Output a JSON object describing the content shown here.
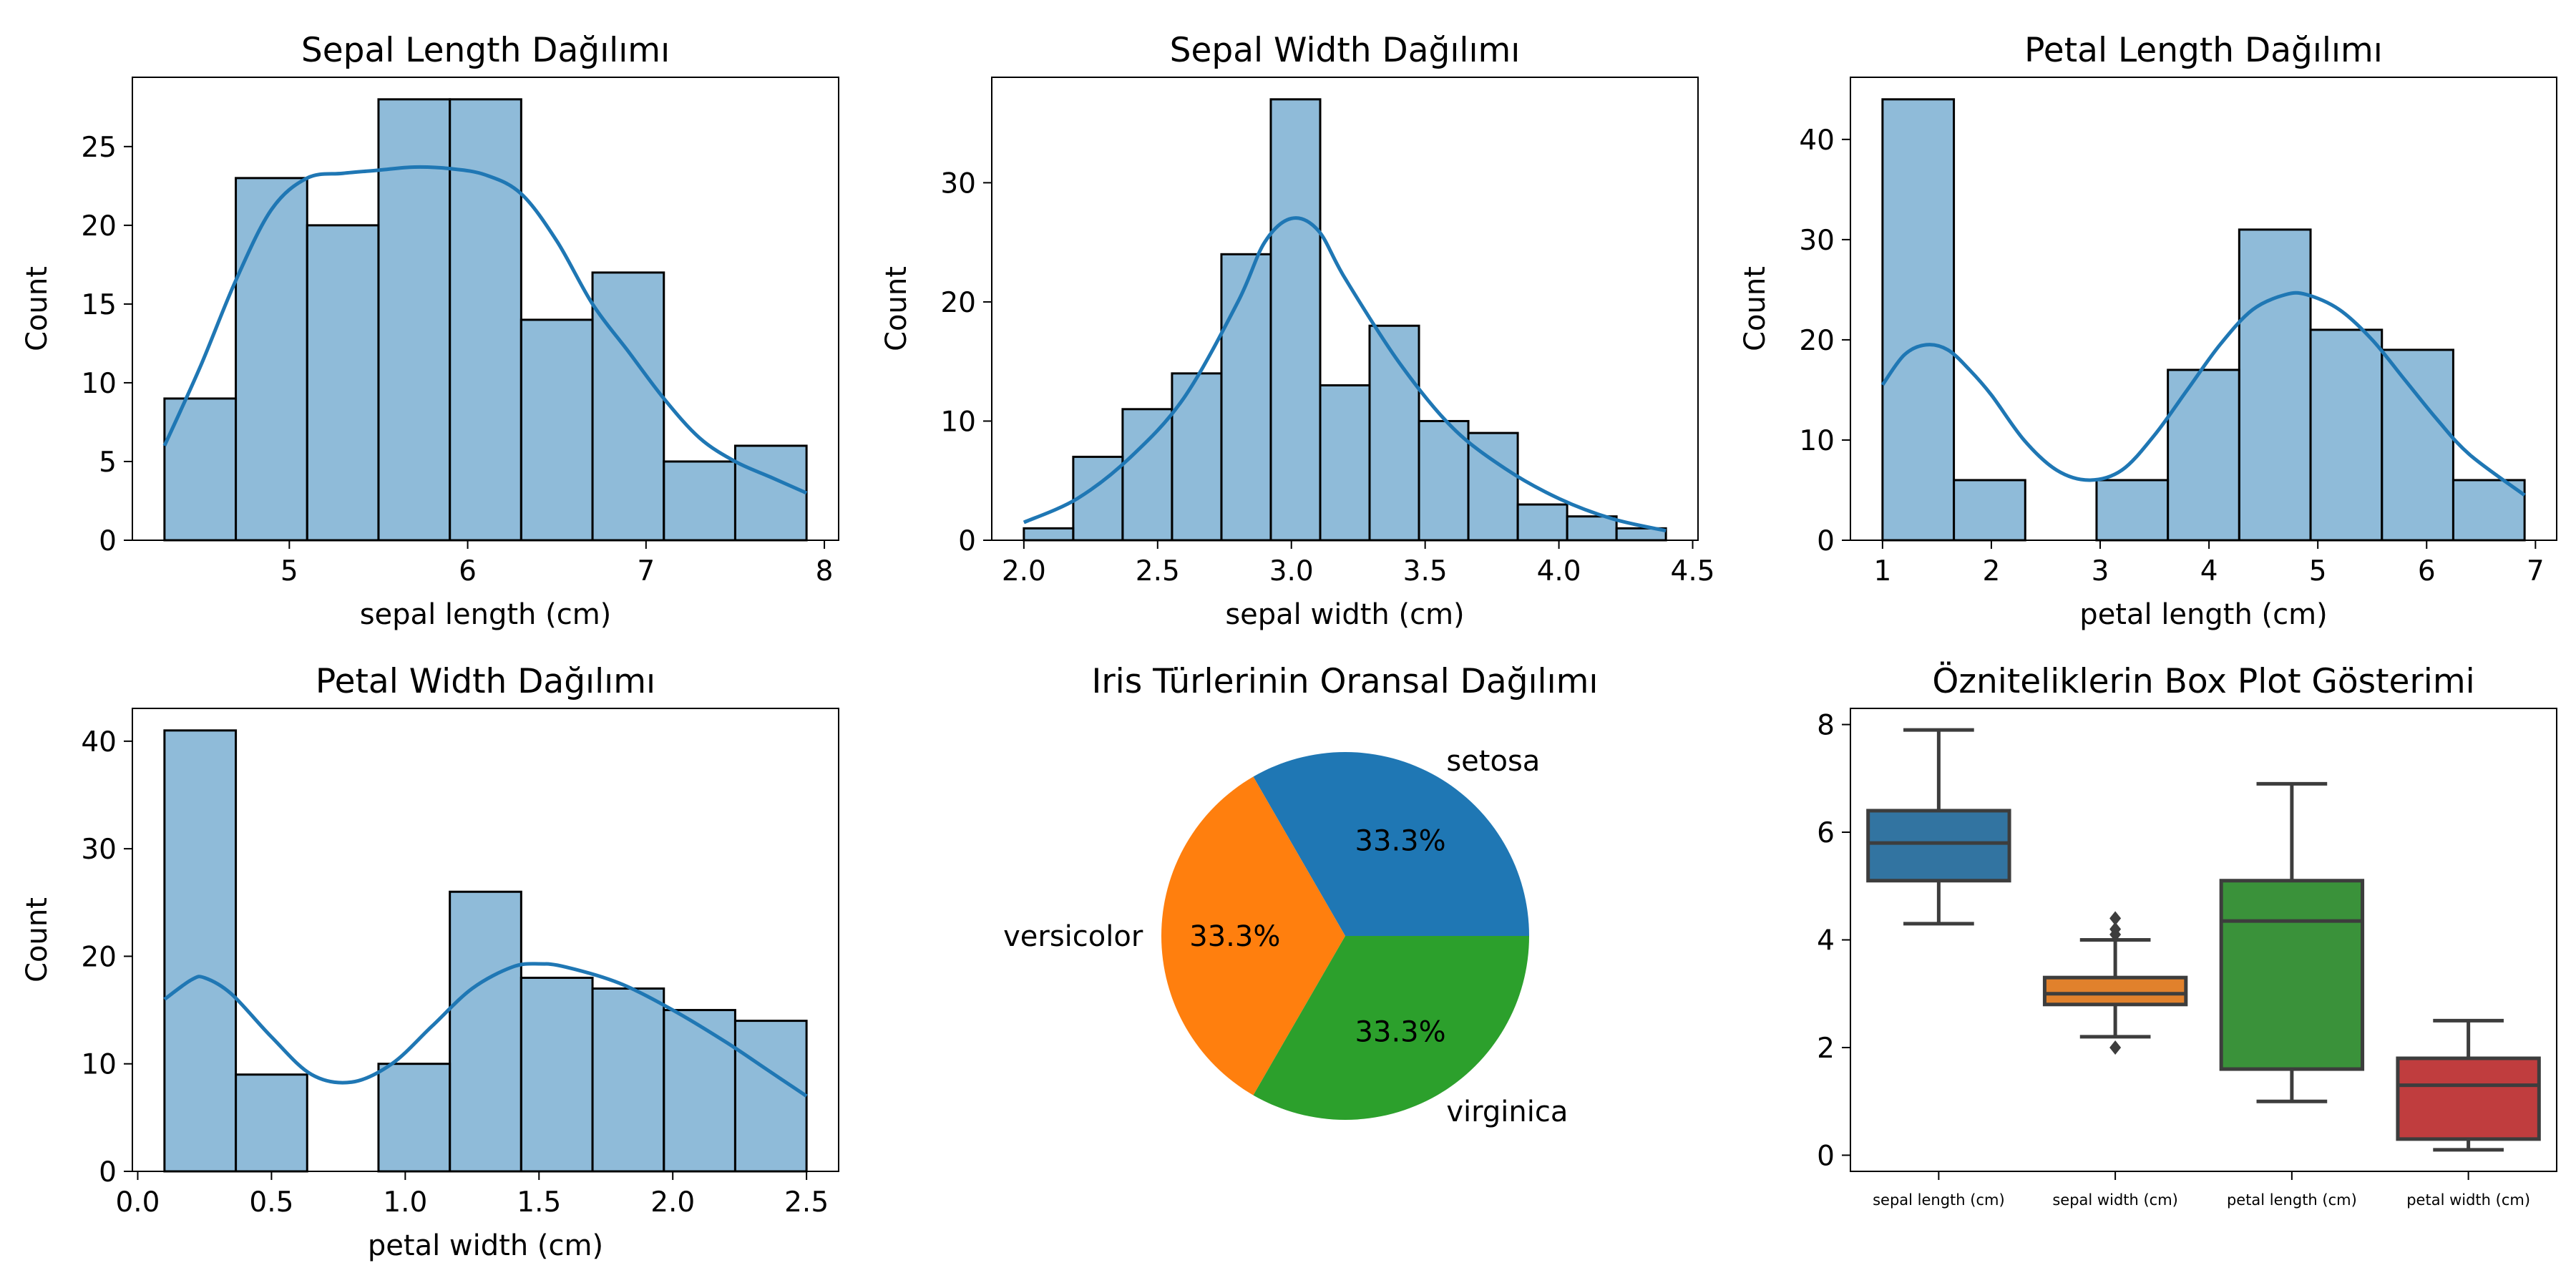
{
  "chart_data": [
    {
      "type": "histogram",
      "title": "Sepal Length Dağılımı",
      "xlabel": "sepal length (cm)",
      "ylabel": "Count",
      "xlim": [
        4.12,
        8.08
      ],
      "ylim": [
        0,
        29.4
      ],
      "xticks": [
        5,
        6,
        7,
        8
      ],
      "yticks": [
        0,
        5,
        10,
        15,
        20,
        25
      ],
      "bin_edges": [
        4.3,
        4.7,
        5.1,
        5.5,
        5.9,
        6.3,
        6.7,
        7.1,
        7.5,
        7.9
      ],
      "counts": [
        9,
        23,
        20,
        28,
        28,
        14,
        17,
        5,
        6
      ],
      "kde": {
        "x": [
          4.3,
          4.5,
          4.7,
          4.9,
          5.1,
          5.3,
          5.5,
          5.7,
          5.9,
          6.1,
          6.3,
          6.5,
          6.7,
          6.9,
          7.1,
          7.3,
          7.5,
          7.7,
          7.9
        ],
        "y": [
          6,
          11,
          16.5,
          21,
          23,
          23.3,
          23.5,
          23.7,
          23.6,
          23.2,
          22,
          19,
          15,
          12,
          9,
          6.5,
          5,
          4,
          3
        ]
      }
    },
    {
      "type": "histogram",
      "title": "Sepal Width Dağılımı",
      "xlabel": "sepal width (cm)",
      "ylabel": "Count",
      "xlim": [
        1.88,
        4.52
      ],
      "ylim": [
        0,
        38.85
      ],
      "xticks": [
        2.0,
        2.5,
        3.0,
        3.5,
        4.0,
        4.5
      ],
      "xtick_labels": [
        "2.0",
        "2.5",
        "3.0",
        "3.5",
        "4.0",
        "4.5"
      ],
      "yticks": [
        0,
        10,
        20,
        30
      ],
      "bin_edges": [
        2.0,
        2.1846,
        2.3692,
        2.5538,
        2.7385,
        2.9231,
        3.1077,
        3.2923,
        3.4769,
        3.6615,
        3.8462,
        4.0308,
        4.2154,
        4.4
      ],
      "counts": [
        1,
        7,
        11,
        14,
        24,
        37,
        13,
        18,
        10,
        9,
        3,
        2,
        1
      ],
      "kde": {
        "x": [
          2.0,
          2.2,
          2.4,
          2.6,
          2.8,
          2.9,
          3.0,
          3.1,
          3.2,
          3.4,
          3.6,
          3.8,
          4.0,
          4.2,
          4.4
        ],
        "y": [
          1.5,
          3.5,
          7,
          12,
          20,
          25,
          27,
          26,
          22,
          15,
          9.5,
          6,
          3.5,
          1.8,
          0.8
        ]
      }
    },
    {
      "type": "histogram",
      "title": "Petal Length Dağılımı",
      "xlabel": "petal length (cm)",
      "ylabel": "Count",
      "xlim": [
        0.705,
        7.195
      ],
      "ylim": [
        0,
        46.2
      ],
      "xticks": [
        1,
        2,
        3,
        4,
        5,
        6,
        7
      ],
      "yticks": [
        0,
        10,
        20,
        30,
        40
      ],
      "bin_edges": [
        1.0,
        1.6556,
        2.3111,
        2.9667,
        3.6222,
        4.2778,
        4.9333,
        5.5889,
        6.2444,
        6.9
      ],
      "counts": [
        44,
        6,
        0,
        6,
        17,
        31,
        21,
        19,
        6
      ],
      "kde": {
        "x": [
          1.0,
          1.2,
          1.4,
          1.6,
          1.8,
          2.0,
          2.3,
          2.6,
          2.9,
          3.2,
          3.5,
          3.8,
          4.1,
          4.4,
          4.7,
          4.9,
          5.2,
          5.5,
          5.8,
          6.1,
          6.4,
          6.9
        ],
        "y": [
          15.5,
          18.5,
          19.5,
          19,
          17,
          14.5,
          10,
          7,
          6,
          7,
          10.5,
          15,
          19.5,
          23,
          24.5,
          24.5,
          23,
          20,
          16,
          12,
          8.5,
          4.5
        ]
      }
    },
    {
      "type": "histogram",
      "title": "Petal Width Dağılımı",
      "xlabel": "petal width (cm)",
      "ylabel": "Count",
      "xlim": [
        -0.02,
        2.62
      ],
      "ylim": [
        0,
        43.05
      ],
      "xticks": [
        0.0,
        0.5,
        1.0,
        1.5,
        2.0,
        2.5
      ],
      "xtick_labels": [
        "0.0",
        "0.5",
        "1.0",
        "1.5",
        "2.0",
        "2.5"
      ],
      "yticks": [
        0,
        10,
        20,
        30,
        40
      ],
      "bin_edges": [
        0.1,
        0.3667,
        0.6333,
        0.9,
        1.1667,
        1.4333,
        1.7,
        1.9667,
        2.2333,
        2.5
      ],
      "counts": [
        41,
        9,
        0,
        10,
        26,
        18,
        17,
        15,
        14
      ],
      "kde": {
        "x": [
          0.1,
          0.2,
          0.25,
          0.35,
          0.5,
          0.65,
          0.8,
          0.95,
          1.1,
          1.25,
          1.4,
          1.5,
          1.6,
          1.8,
          2.0,
          2.2,
          2.35,
          2.5
        ],
        "y": [
          16,
          17.8,
          18,
          16.5,
          12.5,
          9,
          8.3,
          10,
          13.5,
          17,
          19,
          19.3,
          19,
          17.5,
          15,
          12,
          9.5,
          7
        ]
      }
    },
    {
      "type": "pie",
      "title": "Iris Türlerinin Oransal Dağılımı",
      "labels": [
        "setosa",
        "versicolor",
        "virginica"
      ],
      "values": [
        50,
        50,
        50
      ],
      "pct_labels": [
        "33.3%",
        "33.3%",
        "33.3%"
      ],
      "colors": [
        "#1f77b4",
        "#ff7f0e",
        "#2ca02c"
      ]
    },
    {
      "type": "box",
      "title": "Özniteliklerin Box Plot Gösterimi",
      "categories": [
        "sepal length (cm)",
        "sepal width (cm)",
        "petal length (cm)",
        "petal width (cm)"
      ],
      "ylim": [
        -0.3,
        8.3
      ],
      "yticks": [
        0,
        2,
        4,
        6,
        8
      ],
      "colors": [
        "#3274a1",
        "#e1812c",
        "#3a923a",
        "#c03d3e"
      ],
      "boxes": [
        {
          "whislo": 4.3,
          "q1": 5.1,
          "med": 5.8,
          "q3": 6.4,
          "whishi": 7.9,
          "fliers": []
        },
        {
          "whislo": 2.2,
          "q1": 2.8,
          "med": 3.0,
          "q3": 3.3,
          "whishi": 4.0,
          "fliers": [
            4.1,
            4.2,
            4.4,
            2.0
          ]
        },
        {
          "whislo": 1.0,
          "q1": 1.6,
          "med": 4.35,
          "q3": 5.1,
          "whishi": 6.9,
          "fliers": []
        },
        {
          "whislo": 0.1,
          "q1": 0.3,
          "med": 1.3,
          "q3": 1.8,
          "whishi": 2.5,
          "fliers": []
        }
      ]
    }
  ]
}
